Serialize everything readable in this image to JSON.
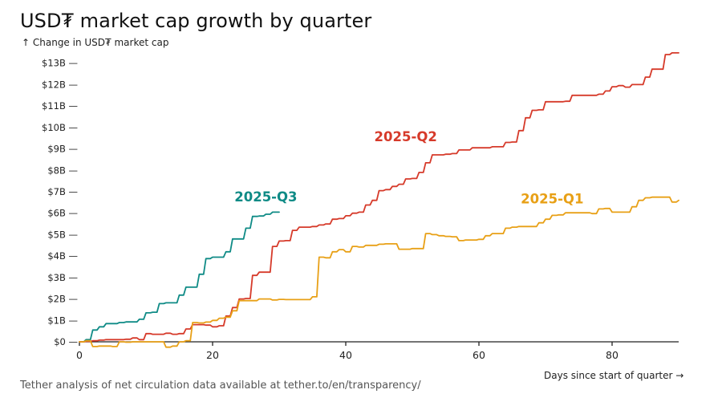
{
  "chart_data": {
    "type": "line",
    "title": "USD₮ market cap growth by quarter",
    "ylabel": "↑ Change in USD₮ market cap",
    "xlabel": "Days since start of quarter →",
    "source": "Tether analysis of net circulation data available at tether.to/en/transparency/",
    "xlim": [
      0,
      90
    ],
    "ylim": [
      0,
      13.4
    ],
    "x_ticks": [
      0,
      20,
      40,
      60,
      80
    ],
    "x_tick_labels": [
      "0",
      "20",
      "40",
      "60",
      "80"
    ],
    "y_ticks": [
      0,
      1,
      2,
      3,
      4,
      5,
      6,
      7,
      8,
      9,
      10,
      11,
      12,
      13
    ],
    "y_tick_labels": [
      "$0 —",
      "$1B —",
      "$2B —",
      "$3B —",
      "$4B —",
      "$5B —",
      "$6B —",
      "$7B —",
      "$8B —",
      "$9B —",
      "$10B —",
      "$11B —",
      "$12B —",
      "$13B —"
    ],
    "grid": false,
    "legend": "inline labels",
    "series": [
      {
        "name": "2025-Q3",
        "color": "#0f8b86",
        "x": [
          0,
          1,
          2,
          3,
          4,
          5,
          6,
          7,
          8,
          9,
          10,
          11,
          12,
          13,
          14,
          15,
          16,
          17,
          18,
          19,
          20,
          21,
          22,
          23,
          24,
          25,
          26,
          27,
          28,
          29,
          30
        ],
        "y": [
          0,
          0.1,
          0.55,
          0.7,
          0.85,
          0.85,
          0.9,
          0.93,
          0.93,
          1.05,
          1.35,
          1.38,
          1.78,
          1.82,
          1.82,
          2.18,
          2.55,
          2.55,
          3.15,
          3.88,
          3.95,
          3.95,
          4.2,
          4.8,
          4.8,
          5.3,
          5.85,
          5.87,
          5.95,
          6.05,
          6.05
        ]
      },
      {
        "name": "2025-Q2",
        "color": "#d63a2a",
        "x": [
          0,
          1,
          2,
          3,
          4,
          5,
          6,
          7,
          8,
          9,
          10,
          11,
          12,
          13,
          14,
          15,
          16,
          17,
          18,
          19,
          20,
          21,
          22,
          23,
          24,
          25,
          26,
          27,
          28,
          29,
          30,
          31,
          32,
          33,
          34,
          35,
          36,
          37,
          38,
          39,
          40,
          41,
          42,
          43,
          44,
          45,
          46,
          47,
          48,
          49,
          50,
          51,
          52,
          53,
          54,
          55,
          56,
          57,
          58,
          59,
          60,
          61,
          62,
          63,
          64,
          65,
          66,
          67,
          68,
          69,
          70,
          71,
          72,
          73,
          74,
          75,
          76,
          77,
          78,
          79,
          80,
          81,
          82,
          83,
          84,
          85,
          86,
          87,
          88,
          89,
          90
        ],
        "y": [
          0,
          0.02,
          0.05,
          0.08,
          0.1,
          0.1,
          0.1,
          0.12,
          0.18,
          0.1,
          0.38,
          0.35,
          0.35,
          0.4,
          0.35,
          0.38,
          0.6,
          0.8,
          0.8,
          0.78,
          0.7,
          0.75,
          1.2,
          1.6,
          2.0,
          2.02,
          3.1,
          3.25,
          3.25,
          4.45,
          4.7,
          4.72,
          5.2,
          5.35,
          5.35,
          5.38,
          5.45,
          5.5,
          5.72,
          5.75,
          5.88,
          6.0,
          6.05,
          6.38,
          6.6,
          7.05,
          7.1,
          7.25,
          7.35,
          7.6,
          7.62,
          7.9,
          8.35,
          8.72,
          8.72,
          8.75,
          8.78,
          8.95,
          8.95,
          9.05,
          9.05,
          9.05,
          9.1,
          9.1,
          9.3,
          9.32,
          9.85,
          10.45,
          10.8,
          10.82,
          11.2,
          11.2,
          11.2,
          11.22,
          11.5,
          11.5,
          11.5,
          11.5,
          11.55,
          11.7,
          11.9,
          11.95,
          11.88,
          12.0,
          12.0,
          12.35,
          12.72,
          12.72,
          13.4,
          13.48,
          13.48
        ]
      },
      {
        "name": "2025-Q1",
        "color": "#e8a016",
        "x": [
          0,
          1,
          2,
          3,
          4,
          5,
          6,
          7,
          8,
          9,
          10,
          11,
          12,
          13,
          14,
          15,
          16,
          17,
          18,
          19,
          20,
          21,
          22,
          23,
          24,
          25,
          26,
          27,
          28,
          29,
          30,
          31,
          32,
          33,
          34,
          35,
          36,
          37,
          38,
          39,
          40,
          41,
          42,
          43,
          44,
          45,
          46,
          47,
          48,
          49,
          50,
          51,
          52,
          53,
          54,
          55,
          56,
          57,
          58,
          59,
          60,
          61,
          62,
          63,
          64,
          65,
          66,
          67,
          68,
          69,
          70,
          71,
          72,
          73,
          74,
          75,
          76,
          77,
          78,
          79,
          80,
          81,
          82,
          83,
          84,
          85,
          86,
          87,
          88,
          89,
          90
        ],
        "y": [
          0,
          0.05,
          -0.22,
          -0.2,
          -0.2,
          -0.22,
          0.0,
          -0.02,
          0.0,
          0.0,
          0.0,
          0.0,
          0.0,
          -0.25,
          -0.2,
          0.0,
          0.05,
          0.9,
          0.88,
          0.92,
          1.0,
          1.1,
          1.15,
          1.45,
          1.92,
          1.92,
          1.92,
          2.0,
          2.0,
          1.95,
          1.98,
          1.97,
          1.97,
          1.97,
          1.97,
          2.1,
          3.95,
          3.92,
          4.2,
          4.3,
          4.2,
          4.45,
          4.42,
          4.5,
          4.5,
          4.55,
          4.57,
          4.57,
          4.32,
          4.32,
          4.35,
          4.35,
          5.05,
          5.0,
          4.95,
          4.92,
          4.9,
          4.72,
          4.75,
          4.75,
          4.78,
          4.95,
          5.05,
          5.05,
          5.3,
          5.35,
          5.38,
          5.38,
          5.38,
          5.55,
          5.72,
          5.9,
          5.92,
          6.02,
          6.02,
          6.02,
          6.02,
          5.98,
          6.2,
          6.22,
          6.05,
          6.05,
          6.05,
          6.3,
          6.6,
          6.72,
          6.75,
          6.75,
          6.75,
          6.52,
          6.6
        ]
      }
    ],
    "annotations": [
      {
        "text": "2025-Q3",
        "series": "2025-Q3",
        "x": 28,
        "y": 6.55
      },
      {
        "text": "2025-Q2",
        "series": "2025-Q2",
        "x": 49,
        "y": 9.35
      },
      {
        "text": "2025-Q1",
        "series": "2025-Q1",
        "x": 71,
        "y": 6.45
      }
    ],
    "axis_color": "#222222"
  }
}
